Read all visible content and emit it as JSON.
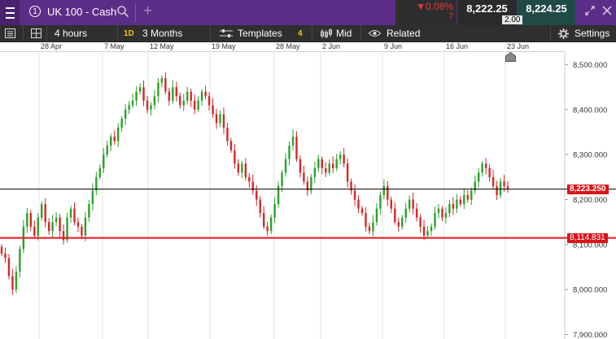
{
  "header": {
    "tab_number": "1",
    "instrument": "UK 100 - Cash",
    "change_pct": "▼0.08%",
    "change_pts": "7",
    "sell_price": "8,222.25",
    "buy_price": "8,224.25",
    "spread": "2.00",
    "colors": {
      "bar": "#5c2d86",
      "sell_bg": "#2a2a2a",
      "buy_bg": "#1f4a45",
      "down": "#e03a3a"
    }
  },
  "toolbar": {
    "interval": "4 hours",
    "period_badge": "1D",
    "period": "3 Months",
    "templates": "Templates",
    "templates_count": "4",
    "price_mode": "Mid",
    "related": "Related",
    "settings": "Settings"
  },
  "chart_data": {
    "type": "candlestick",
    "x_ticks": [
      "28 Apr",
      "7 May",
      "12 May",
      "19 May",
      "28 May",
      "2 Jun",
      "9 Jun",
      "16 Jun",
      "23 Jun"
    ],
    "y_ticks": [
      "8,500.000",
      "8,400.000",
      "8,300.000",
      "8,200.000",
      "8,100.000",
      "8,000.000",
      "7,900.000"
    ],
    "ylim": [
      7890,
      8530
    ],
    "current_price": 8223.25,
    "current_price_label": "8,223.250",
    "support_level": 8114.831,
    "support_label": "8,114.831",
    "colors": {
      "up": "#2ca02c",
      "down": "#d62728",
      "support": "#e8151b",
      "current": "#000000",
      "label_bg": "#d9151b"
    },
    "closes": [
      8080,
      8070,
      8030,
      8000,
      8040,
      8090,
      8140,
      8170,
      8140,
      8120,
      8160,
      8190,
      8150,
      8130,
      8150,
      8160,
      8130,
      8110,
      8160,
      8180,
      8150,
      8140,
      8120,
      8160,
      8190,
      8220,
      8250,
      8270,
      8300,
      8320,
      8340,
      8330,
      8360,
      8380,
      8400,
      8410,
      8420,
      8440,
      8450,
      8420,
      8400,
      8410,
      8430,
      8460,
      8470,
      8440,
      8420,
      8450,
      8430,
      8410,
      8420,
      8440,
      8420,
      8400,
      8420,
      8440,
      8430,
      8410,
      8390,
      8370,
      8390,
      8360,
      8330,
      8310,
      8280,
      8260,
      8280,
      8250,
      8240,
      8220,
      8200,
      8170,
      8140,
      8130,
      8160,
      8190,
      8230,
      8260,
      8290,
      8320,
      8340,
      8290,
      8260,
      8240,
      8220,
      8250,
      8270,
      8290,
      8270,
      8260,
      8280,
      8270,
      8290,
      8300,
      8280,
      8240,
      8220,
      8200,
      8180,
      8170,
      8140,
      8130,
      8150,
      8180,
      8210,
      8230,
      8200,
      8180,
      8150,
      8140,
      8160,
      8180,
      8200,
      8180,
      8160,
      8140,
      8120,
      8130,
      8140,
      8170,
      8180,
      8160,
      8170,
      8190,
      8180,
      8200,
      8190,
      8210,
      8200,
      8220,
      8240,
      8260,
      8280,
      8270,
      8250,
      8230,
      8210,
      8240,
      8230,
      8223
    ]
  }
}
